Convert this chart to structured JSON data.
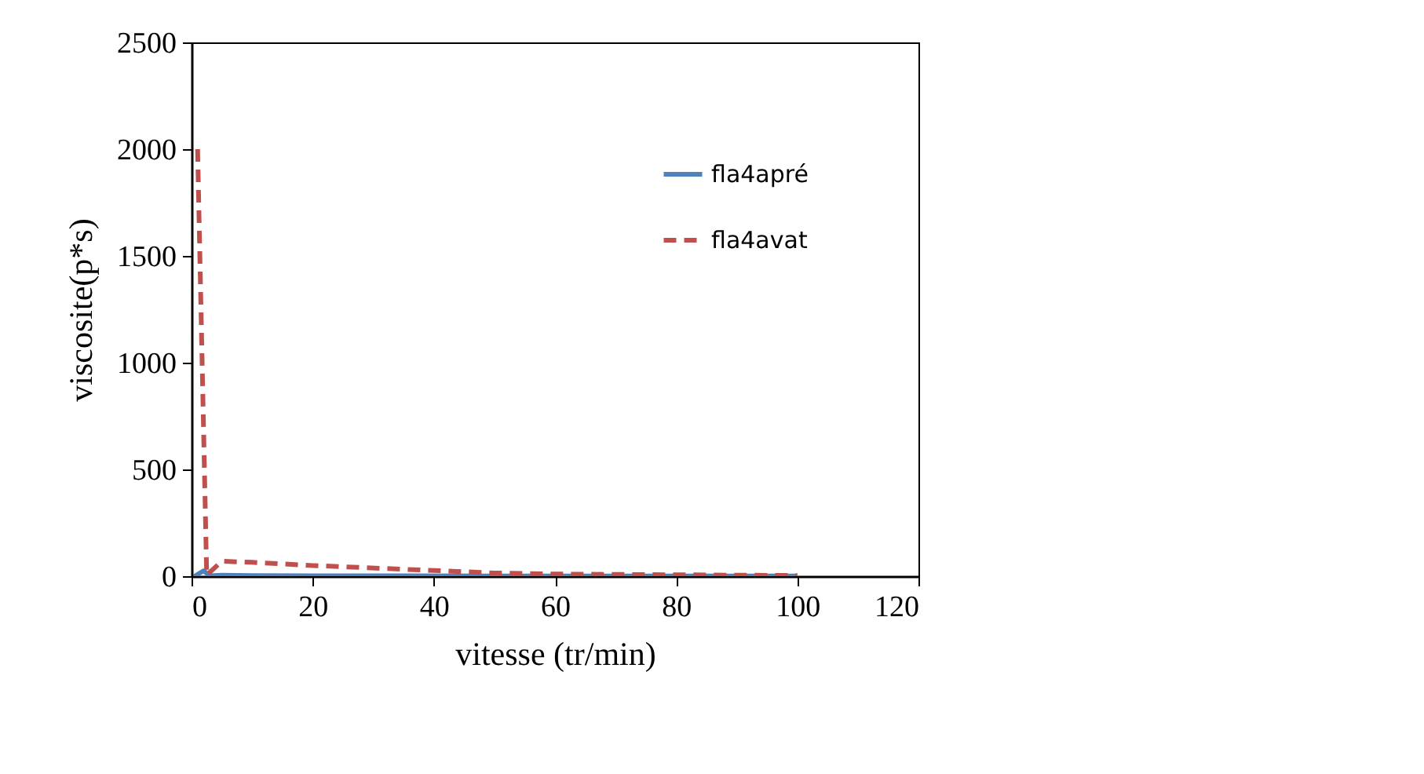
{
  "chart_data": {
    "type": "line",
    "xlabel": "vitesse (tr/min)",
    "ylabel": "viscosite(p*s)",
    "xlim": [
      0,
      120
    ],
    "xticks": [
      0,
      20,
      40,
      60,
      80,
      100,
      120
    ],
    "ylim": [
      0,
      2500
    ],
    "yticks": [
      0,
      500,
      1000,
      1500,
      2000,
      2500
    ],
    "grid": false,
    "legend": "top right",
    "marker": "none",
    "series": [
      {
        "name": "fla4apré",
        "color": "#4f81bd",
        "line_style": "solid",
        "x": [
          0.5,
          2,
          3,
          5,
          10,
          20,
          50,
          60,
          100
        ],
        "values": [
          0,
          25,
          2,
          5,
          3,
          2,
          1,
          1,
          1
        ]
      },
      {
        "name": "fla4avat",
        "color": "#c0504d",
        "line_style": "dashed",
        "x": [
          1,
          2.5,
          5,
          10,
          20,
          50,
          60,
          100
        ],
        "values": [
          2000,
          5,
          70,
          65,
          50,
          15,
          10,
          3
        ]
      }
    ]
  }
}
